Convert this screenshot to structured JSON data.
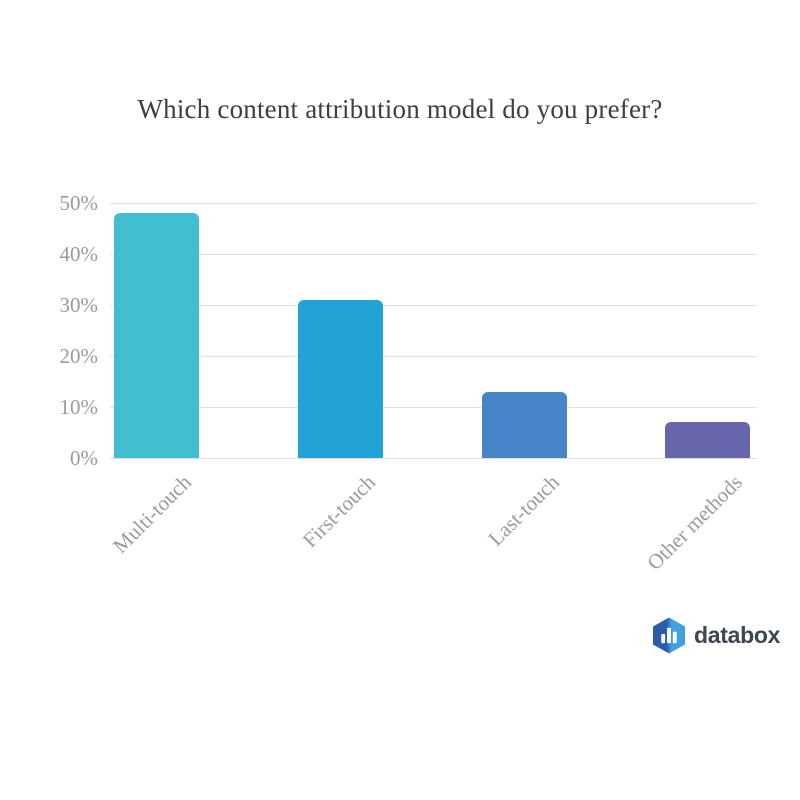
{
  "chart_data": {
    "type": "bar",
    "title": "Which content attribution model do you prefer?",
    "categories": [
      "Multi-touch",
      "First-touch",
      "Last-touch",
      "Other methods"
    ],
    "values": [
      48,
      31,
      13,
      7
    ],
    "unit": "%",
    "bar_colors": [
      "#41bfd1",
      "#23a2d6",
      "#4685c7",
      "#6765ab"
    ],
    "xlabel": "",
    "ylabel": "",
    "ylim": [
      0,
      50
    ],
    "yticks": [
      0,
      10,
      20,
      30,
      40,
      50
    ],
    "ytick_labels": [
      "0%",
      "10%",
      "20%",
      "30%",
      "40%",
      "50%"
    ],
    "grid": "horizontal",
    "legend": "none"
  },
  "branding": {
    "logo_text": "databox",
    "logo_icon": "hexagon-bar-chart",
    "logo_colors": {
      "hex_left": "#2b5ca7",
      "hex_right": "#3fa0e2",
      "bars": "#ffffff",
      "text": "#3d4651"
    }
  },
  "colors": {
    "background": "#ffffff",
    "title_text": "#3b4045",
    "axis_text": "#9b9b9b",
    "gridline": "#e2e2e2",
    "baseline": "#d9dfe3"
  }
}
